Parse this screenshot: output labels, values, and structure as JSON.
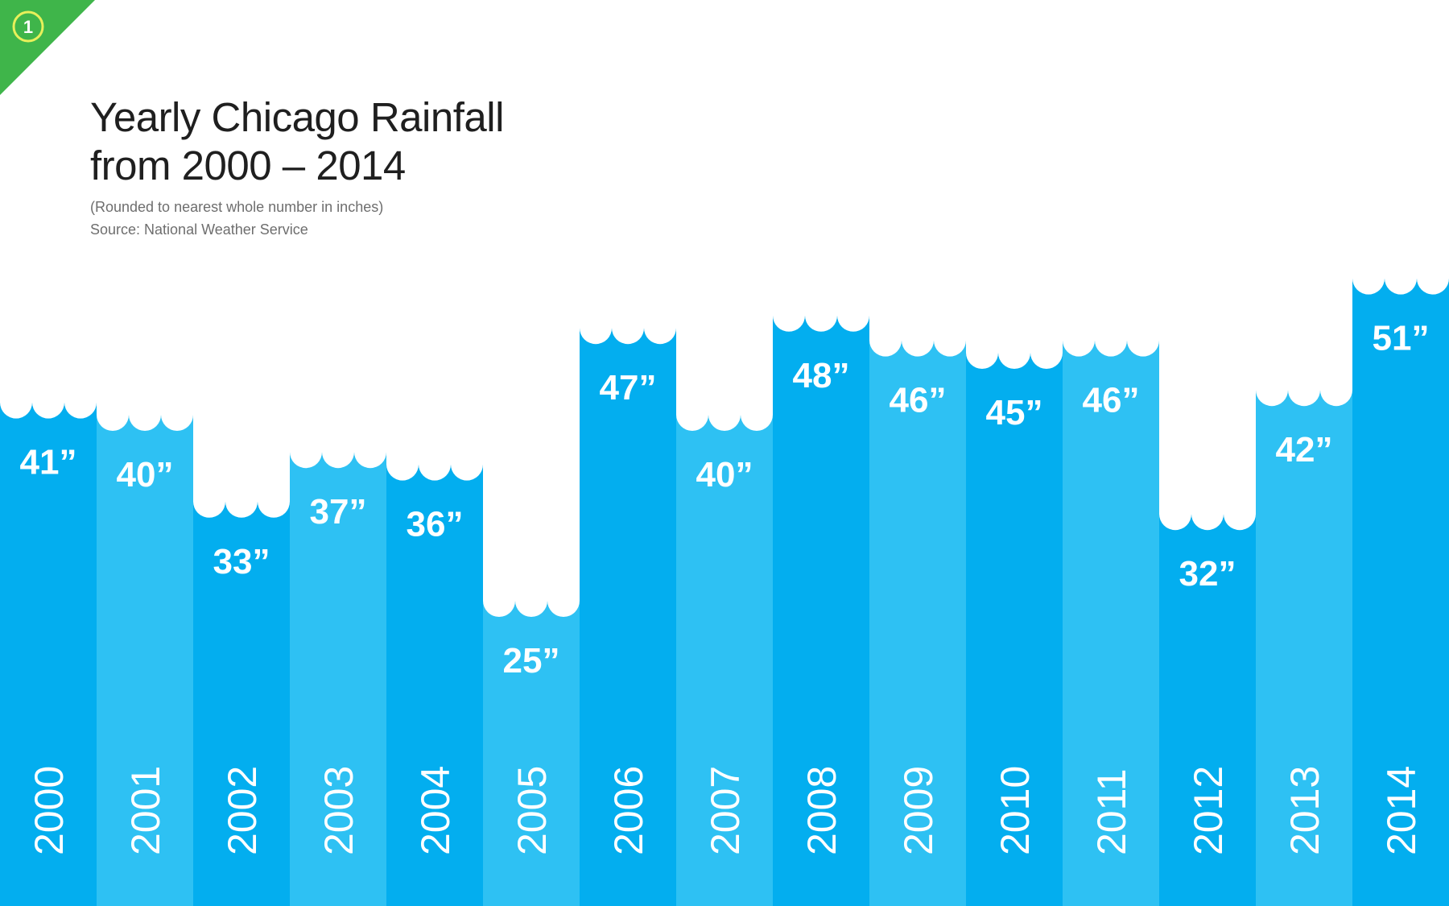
{
  "badge": {
    "number": "1",
    "color": "#3fb54a"
  },
  "title": {
    "line1": "Yearly Chicago Rainfall",
    "line2": "from 2000 – 2014"
  },
  "subtitle": {
    "note": "(Rounded to nearest whole number in inches)",
    "source": "Source: National Weather Service"
  },
  "colors": {
    "bar_dark": "#03aeef",
    "bar_light": "#2ec1f3",
    "label": "#ffffff"
  },
  "chart_data": {
    "type": "bar",
    "title": "Yearly Chicago Rainfall from 2000 – 2014",
    "categories": [
      "2000",
      "2001",
      "2002",
      "2003",
      "2004",
      "2005",
      "2006",
      "2007",
      "2008",
      "2009",
      "2010",
      "2011",
      "2012",
      "2013",
      "2014"
    ],
    "values": [
      41,
      40,
      33,
      37,
      36,
      25,
      47,
      40,
      48,
      46,
      45,
      46,
      32,
      42,
      51
    ],
    "value_labels": [
      "41”",
      "40”",
      "33”",
      "37”",
      "36”",
      "25”",
      "47”",
      "40”",
      "48”",
      "46”",
      "45”",
      "46”",
      "32”",
      "42”",
      "51”"
    ],
    "unit": "inches",
    "xlabel": "",
    "ylabel": "",
    "grid": false,
    "legend": "none"
  }
}
